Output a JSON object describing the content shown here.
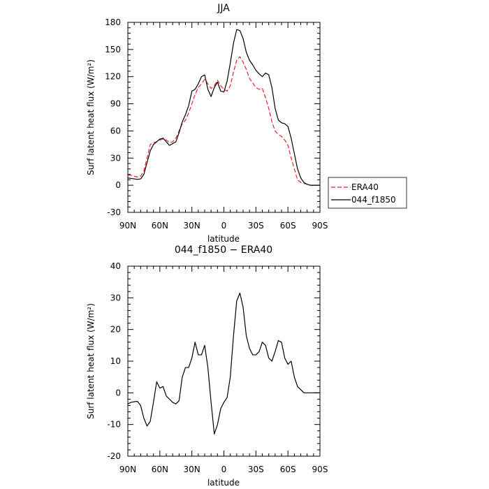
{
  "chart_data": [
    {
      "type": "line",
      "title": "JJA",
      "xlabel": "latitude",
      "ylabel": "Surf latent heat flux (W/m²)",
      "ylim": [
        -30,
        180
      ],
      "yticks": [
        -30,
        0,
        30,
        60,
        90,
        120,
        150,
        180
      ],
      "xlim": [
        90,
        -90
      ],
      "xticks": [
        90,
        60,
        30,
        0,
        -30,
        -60,
        -90
      ],
      "xtick_labels": [
        "90N",
        "60N",
        "30N",
        "0",
        "30S",
        "60S",
        "90S"
      ],
      "legend_placement": "right",
      "x": [
        90,
        87,
        84,
        81,
        78,
        75,
        72,
        69,
        66,
        63,
        60,
        57,
        54,
        51,
        48,
        45,
        42,
        39,
        36,
        33,
        30,
        27,
        24,
        21,
        18,
        15,
        12,
        9,
        6,
        3,
        0,
        -3,
        -6,
        -9,
        -12,
        -15,
        -18,
        -21,
        -24,
        -27,
        -30,
        -33,
        -36,
        -39,
        -42,
        -45,
        -48,
        -51,
        -54,
        -57,
        -60,
        -63,
        -66,
        -69,
        -72,
        -75,
        -78,
        -81,
        -84,
        -87,
        -90
      ],
      "series": [
        {
          "name": "ERA40",
          "color": "#e8242a",
          "dash": true,
          "values": [
            11,
            11,
            10,
            9,
            10,
            16,
            30,
            45,
            47,
            48,
            50,
            51,
            50,
            47,
            48,
            52,
            60,
            68,
            72,
            80,
            90,
            100,
            108,
            112,
            117,
            112,
            107,
            110,
            116,
            110,
            106,
            104,
            110,
            125,
            138,
            142,
            136,
            128,
            118,
            113,
            108,
            106,
            107,
            97,
            85,
            70,
            60,
            56,
            54,
            50,
            44,
            30,
            18,
            6,
            3,
            2,
            1,
            0,
            0,
            0,
            0
          ]
        },
        {
          "name": "044_f1850",
          "color": "#000000",
          "dash": false,
          "values": [
            8,
            7.5,
            7,
            6.5,
            7,
            12,
            25,
            38,
            45,
            48,
            51,
            52,
            48,
            44,
            46,
            48,
            58,
            70,
            78,
            88,
            104,
            106,
            112,
            120,
            122,
            106,
            98,
            108,
            114,
            104,
            103,
            115,
            135,
            157,
            172,
            171,
            162,
            147,
            138,
            133,
            127,
            123,
            120,
            124,
            122,
            108,
            85,
            72,
            69,
            68,
            65,
            52,
            35,
            18,
            8,
            3,
            1,
            0,
            0,
            0,
            0
          ]
        }
      ]
    },
    {
      "type": "line",
      "title": "044_f1850 − ERA40",
      "xlabel": "latitude",
      "ylabel": "Surf latent heat flux (W/m²)",
      "ylim": [
        -20,
        40
      ],
      "yticks": [
        -20,
        -10,
        0,
        10,
        20,
        30,
        40
      ],
      "xlim": [
        90,
        -90
      ],
      "xticks": [
        90,
        60,
        30,
        0,
        -30,
        -60,
        -90
      ],
      "xtick_labels": [
        "90N",
        "60N",
        "30N",
        "0",
        "30S",
        "60S",
        "90S"
      ],
      "x": [
        90,
        87,
        84,
        81,
        78,
        75,
        72,
        69,
        66,
        63,
        60,
        57,
        54,
        51,
        48,
        45,
        42,
        39,
        36,
        33,
        30,
        27,
        24,
        21,
        18,
        15,
        12,
        9,
        6,
        3,
        0,
        -3,
        -6,
        -9,
        -12,
        -15,
        -18,
        -21,
        -24,
        -27,
        -30,
        -33,
        -36,
        -39,
        -42,
        -45,
        -48,
        -51,
        -54,
        -57,
        -60,
        -63,
        -66,
        -69,
        -72,
        -75,
        -78,
        -81,
        -84,
        -87,
        -90
      ],
      "series": [
        {
          "name": "044_f1850 − ERA40",
          "color": "#000000",
          "dash": false,
          "values": [
            -3.5,
            -3,
            -2.8,
            -2.7,
            -4,
            -8,
            -10.5,
            -9,
            -3,
            3.5,
            1.5,
            2,
            -1,
            -2,
            -3,
            -3.5,
            -2.5,
            5,
            8,
            8,
            11,
            16,
            12,
            12,
            15,
            8,
            -3,
            -13,
            -10,
            -5,
            -3,
            -1.5,
            5,
            18,
            29,
            31.5,
            27,
            18,
            14,
            12,
            12,
            13,
            16,
            15,
            11,
            10,
            13,
            16.5,
            16,
            11,
            9,
            10,
            5,
            2,
            1,
            0,
            0,
            0,
            0,
            0,
            0
          ]
        }
      ]
    }
  ]
}
